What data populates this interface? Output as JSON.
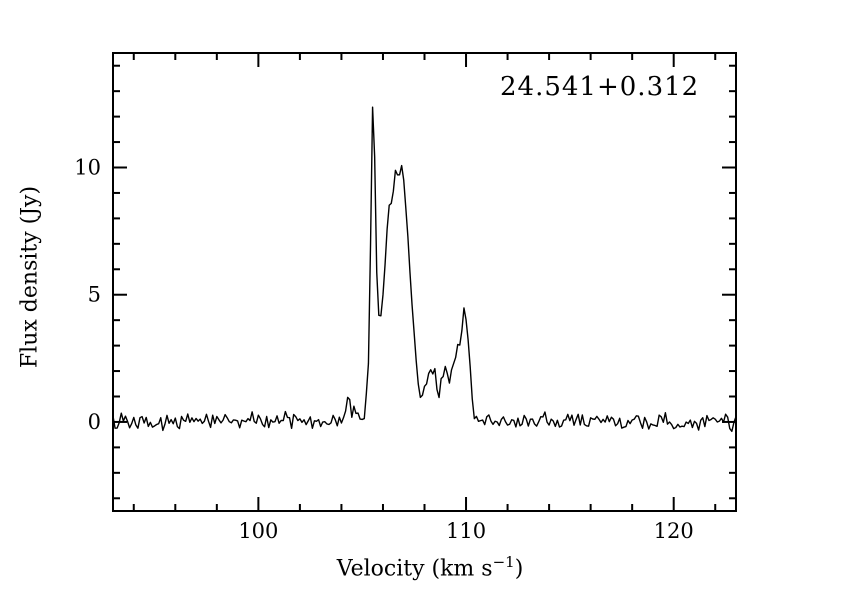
{
  "chart_data": {
    "type": "line",
    "title": "24.541+0.312",
    "xlabel": "Velocity (km s^-1)",
    "xlabel_parts": {
      "prefix": "Velocity (km s",
      "superscript": "−1",
      "suffix": ")"
    },
    "ylabel": "Flux density (Jy)",
    "xlim": [
      93,
      123
    ],
    "ylim": [
      -3.5,
      14.5
    ],
    "x_major_ticks": [
      100,
      110,
      120
    ],
    "x_minor_tick_step": 2,
    "y_major_ticks": [
      0,
      5,
      10
    ],
    "y_minor_tick_step": 1,
    "grid": false,
    "legend": "none",
    "background_color": "#ffffff",
    "frame_color": "#000000",
    "line_color": "#000000",
    "series": [
      {
        "name": "maser-spectrum",
        "channel_width_kms": 0.1,
        "noise_rms_jy": 0.13,
        "noise_seed": 24541,
        "profile_points": [
          [
            93.0,
            0.0
          ],
          [
            104.0,
            0.05
          ],
          [
            104.15,
            0.45
          ],
          [
            104.3,
            0.8
          ],
          [
            104.45,
            0.45
          ],
          [
            104.6,
            0.3
          ],
          [
            104.75,
            0.45
          ],
          [
            104.9,
            0.1
          ],
          [
            105.0,
            0.2
          ],
          [
            105.15,
            0.3
          ],
          [
            105.3,
            2.2
          ],
          [
            105.4,
            7.0
          ],
          [
            105.5,
            12.2
          ],
          [
            105.6,
            10.5
          ],
          [
            105.7,
            6.0
          ],
          [
            105.8,
            4.3
          ],
          [
            105.9,
            4.1
          ],
          [
            106.0,
            4.9
          ],
          [
            106.1,
            6.3
          ],
          [
            106.2,
            7.6
          ],
          [
            106.3,
            8.5
          ],
          [
            106.4,
            8.7
          ],
          [
            106.5,
            9.3
          ],
          [
            106.6,
            9.7
          ],
          [
            106.7,
            9.85
          ],
          [
            106.8,
            9.75
          ],
          [
            106.9,
            9.8
          ],
          [
            107.0,
            9.3
          ],
          [
            107.1,
            8.3
          ],
          [
            107.2,
            7.0
          ],
          [
            107.35,
            5.3
          ],
          [
            107.5,
            3.6
          ],
          [
            107.65,
            2.0
          ],
          [
            107.75,
            1.1
          ],
          [
            107.85,
            0.95
          ],
          [
            107.95,
            1.3
          ],
          [
            108.1,
            1.7
          ],
          [
            108.2,
            1.55
          ],
          [
            108.3,
            1.95
          ],
          [
            108.4,
            1.75
          ],
          [
            108.5,
            2.05
          ],
          [
            108.6,
            1.3
          ],
          [
            108.7,
            0.85
          ],
          [
            108.8,
            1.35
          ],
          [
            108.9,
            1.6
          ],
          [
            109.0,
            1.95
          ],
          [
            109.1,
            1.75
          ],
          [
            109.2,
            1.6
          ],
          [
            109.3,
            2.1
          ],
          [
            109.4,
            2.3
          ],
          [
            109.5,
            2.45
          ],
          [
            109.6,
            2.7
          ],
          [
            109.7,
            3.05
          ],
          [
            109.8,
            3.6
          ],
          [
            109.9,
            4.3
          ],
          [
            110.0,
            4.1
          ],
          [
            110.1,
            3.3
          ],
          [
            110.2,
            2.0
          ],
          [
            110.3,
            0.8
          ],
          [
            110.4,
            0.25
          ],
          [
            110.55,
            0.05
          ],
          [
            123.0,
            0.0
          ]
        ]
      }
    ]
  }
}
